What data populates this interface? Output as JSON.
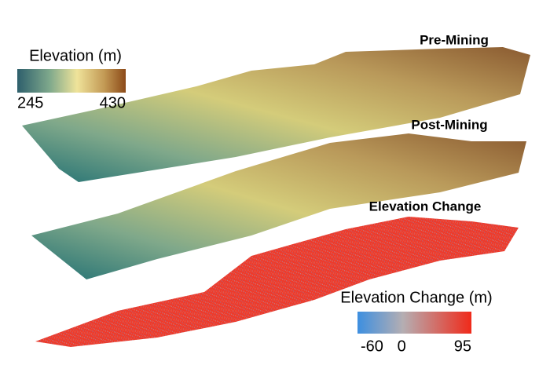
{
  "panels": [
    {
      "label": "Pre-Mining"
    },
    {
      "label": "Post-Mining"
    },
    {
      "label": "Elevation Change"
    }
  ],
  "legends": [
    {
      "title": "Elevation (m)",
      "ticks": [
        245,
        430
      ]
    },
    {
      "title": "Elevation Change (m)",
      "ticks": [
        -60,
        0,
        95
      ]
    }
  ]
}
